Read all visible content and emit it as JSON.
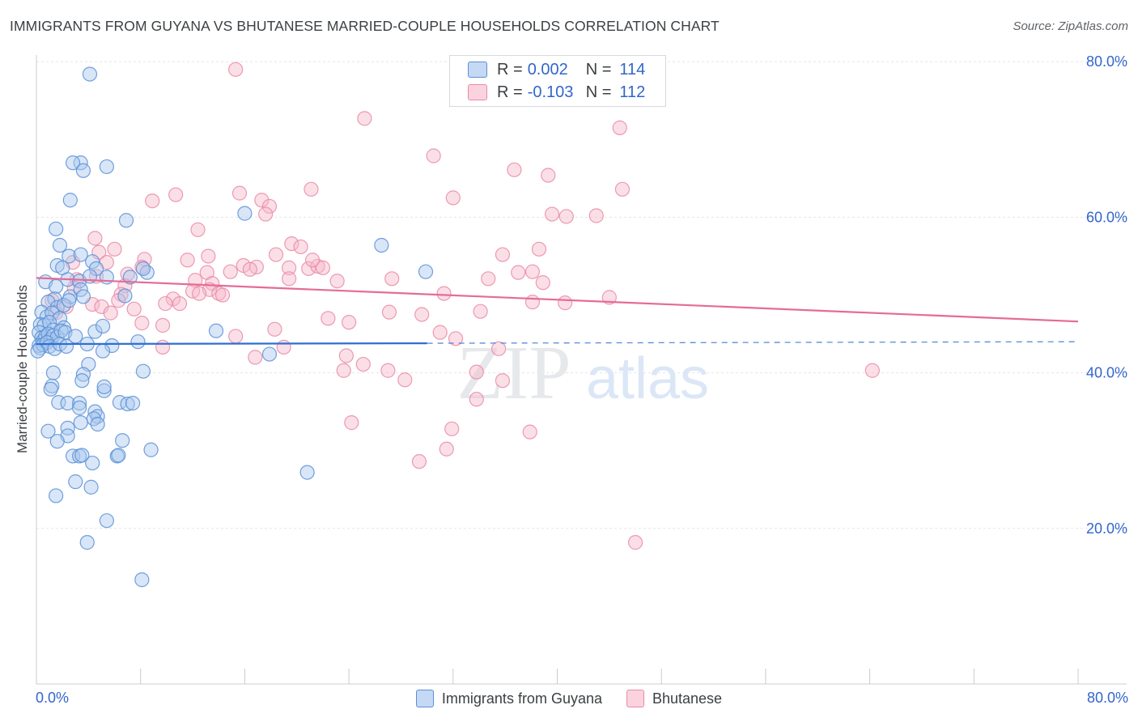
{
  "title": "IMMIGRANTS FROM GUYANA VS BHUTANESE MARRIED-COUPLE HOUSEHOLDS CORRELATION CHART",
  "source": "Source: ZipAtlas.com",
  "watermark_zip": "ZIP",
  "watermark_atlas": "atlas",
  "stats": {
    "r_label": "R =",
    "n_label": "N =",
    "rows": [
      {
        "r": "0.002",
        "n": "114"
      },
      {
        "r": "-0.103",
        "n": "112"
      }
    ]
  },
  "legend": {
    "items": [
      {
        "label": "Immigrants from Guyana"
      },
      {
        "label": "Bhutanese"
      }
    ]
  },
  "axis": {
    "x_min_label": "0.0%",
    "x_max_label": "80.0%"
  },
  "colors": {
    "blue_fill": "#a9c8ee",
    "blue_stroke": "#5b8fd6",
    "blue_line": "#2e6fd2",
    "pink_fill": "#f6b8ca",
    "pink_stroke": "#e98aa8",
    "pink_line": "#e56b98",
    "value_text": "#3366cc"
  },
  "chart_data": {
    "type": "scatter",
    "title": "IMMIGRANTS FROM GUYANA VS BHUTANESE MARRIED-COUPLE HOUSEHOLDS CORRELATION CHART",
    "xlabel": "",
    "ylabel": "Married-couple Households",
    "xlim": [
      0,
      80
    ],
    "ylim": [
      0,
      82
    ],
    "y_ticks": [
      {
        "value": 20,
        "label": "20.0%"
      },
      {
        "value": 40,
        "label": "40.0%"
      },
      {
        "value": 60,
        "label": "60.0%"
      },
      {
        "value": 80,
        "label": "80.0%"
      }
    ],
    "x_ticks": [
      0,
      8,
      16,
      24,
      32,
      40,
      48,
      56,
      64,
      72,
      80
    ],
    "grid": true,
    "series": [
      {
        "name": "Immigrants from Guyana",
        "R": 0.002,
        "N": 114,
        "trend": {
          "x0": 0,
          "y0": 43.7,
          "x1": 30,
          "y1": 43.8,
          "dash_to_x": 80,
          "dash_y": 44.0
        },
        "points": [
          [
            4.1,
            78.4
          ],
          [
            3.4,
            67
          ],
          [
            2.8,
            67
          ],
          [
            3.6,
            66
          ],
          [
            5.4,
            66.5
          ],
          [
            2.6,
            62.2
          ],
          [
            6.9,
            59.6
          ],
          [
            1.5,
            58.5
          ],
          [
            16.0,
            60.5
          ],
          [
            26.5,
            56.4
          ],
          [
            29.9,
            53
          ],
          [
            1.8,
            56.4
          ],
          [
            2.5,
            55
          ],
          [
            3.4,
            55.2
          ],
          [
            4.3,
            54.3
          ],
          [
            4.6,
            53.4
          ],
          [
            1.6,
            53.8
          ],
          [
            2.0,
            53.5
          ],
          [
            2.4,
            52
          ],
          [
            3.3,
            51.8
          ],
          [
            4.1,
            52.4
          ],
          [
            5.4,
            52.3
          ],
          [
            8.5,
            52.9
          ],
          [
            8.2,
            53.4
          ],
          [
            7.2,
            52.3
          ],
          [
            0.7,
            51.7
          ],
          [
            1.5,
            51.1
          ],
          [
            2.6,
            49.8
          ],
          [
            1.4,
            49.5
          ],
          [
            3.4,
            50.7
          ],
          [
            3.6,
            49.8
          ],
          [
            6.8,
            49.9
          ],
          [
            0.9,
            49.1
          ],
          [
            1.6,
            48.4
          ],
          [
            2.1,
            48.7
          ],
          [
            2.5,
            49.3
          ],
          [
            0.4,
            47.8
          ],
          [
            0.8,
            47.2
          ],
          [
            1.2,
            47.7
          ],
          [
            1.8,
            47
          ],
          [
            0.3,
            46.2
          ],
          [
            0.6,
            46.1
          ],
          [
            1.0,
            46.5
          ],
          [
            1.3,
            45.5
          ],
          [
            2.1,
            45.8
          ],
          [
            0.2,
            45.2
          ],
          [
            0.4,
            44.5
          ],
          [
            0.5,
            44.1
          ],
          [
            0.7,
            44.7
          ],
          [
            0.9,
            45
          ],
          [
            1.1,
            44.3
          ],
          [
            1.3,
            44.8
          ],
          [
            1.6,
            44.6
          ],
          [
            1.9,
            45.4
          ],
          [
            2.2,
            45.2
          ],
          [
            3.0,
            44.7
          ],
          [
            4.5,
            45.3
          ],
          [
            5.1,
            46
          ],
          [
            13.8,
            45.4
          ],
          [
            0.2,
            43.5
          ],
          [
            0.3,
            43.2
          ],
          [
            0.5,
            43.6
          ],
          [
            0.8,
            43.9
          ],
          [
            1.0,
            43.4
          ],
          [
            1.4,
            43.1
          ],
          [
            1.8,
            43.7
          ],
          [
            2.3,
            43.4
          ],
          [
            3.9,
            43.7
          ],
          [
            5.8,
            43.5
          ],
          [
            7.8,
            44
          ],
          [
            17.9,
            42.4
          ],
          [
            0.1,
            42.8
          ],
          [
            5.1,
            42.8
          ],
          [
            4.0,
            41.1
          ],
          [
            8.2,
            40.2
          ],
          [
            1.3,
            40
          ],
          [
            3.6,
            39.8
          ],
          [
            3.5,
            39
          ],
          [
            1.2,
            38.3
          ],
          [
            1.1,
            37.9
          ],
          [
            5.2,
            37.7
          ],
          [
            5.2,
            38.2
          ],
          [
            1.7,
            36.2
          ],
          [
            2.4,
            36.1
          ],
          [
            3.3,
            36.1
          ],
          [
            6.4,
            36.2
          ],
          [
            7.0,
            36
          ],
          [
            7.4,
            36.1
          ],
          [
            3.3,
            35.5
          ],
          [
            4.5,
            35
          ],
          [
            4.7,
            34.4
          ],
          [
            4.4,
            34.1
          ],
          [
            3.4,
            33.6
          ],
          [
            4.7,
            33.4
          ],
          [
            0.9,
            32.5
          ],
          [
            2.4,
            32.9
          ],
          [
            2.4,
            31.9
          ],
          [
            1.6,
            31.2
          ],
          [
            6.6,
            31.3
          ],
          [
            8.8,
            30.1
          ],
          [
            2.8,
            29.3
          ],
          [
            3.3,
            29.3
          ],
          [
            3.5,
            29.4
          ],
          [
            6.2,
            29.3
          ],
          [
            6.3,
            29.4
          ],
          [
            4.3,
            28.4
          ],
          [
            20.8,
            27.2
          ],
          [
            3.0,
            26
          ],
          [
            4.2,
            25.3
          ],
          [
            1.5,
            24.2
          ],
          [
            5.4,
            21
          ],
          [
            3.9,
            18.2
          ],
          [
            8.1,
            13.4
          ]
        ]
      },
      {
        "name": "Bhutanese",
        "R": -0.103,
        "N": 112,
        "trend": {
          "x0": 0,
          "y0": 52.2,
          "x1": 80,
          "y1": 46.6
        },
        "points": [
          [
            15.3,
            79
          ],
          [
            25.2,
            72.7
          ],
          [
            44.8,
            71.5
          ],
          [
            30.5,
            67.9
          ],
          [
            36.7,
            66.1
          ],
          [
            39.3,
            65.4
          ],
          [
            21.1,
            63.6
          ],
          [
            45.0,
            63.6
          ],
          [
            10.7,
            62.9
          ],
          [
            15.6,
            63.1
          ],
          [
            17.3,
            62.2
          ],
          [
            32.0,
            62.5
          ],
          [
            8.9,
            62.1
          ],
          [
            17.9,
            61.4
          ],
          [
            17.6,
            60.4
          ],
          [
            39.6,
            60.4
          ],
          [
            40.7,
            60.1
          ],
          [
            43.0,
            60.2
          ],
          [
            12.4,
            58.4
          ],
          [
            4.5,
            57.3
          ],
          [
            6.0,
            55.9
          ],
          [
            4.8,
            55.5
          ],
          [
            19.6,
            56.6
          ],
          [
            18.4,
            55.2
          ],
          [
            8.3,
            54.6
          ],
          [
            11.6,
            54.5
          ],
          [
            13.2,
            55
          ],
          [
            35.8,
            55.2
          ],
          [
            38.6,
            55.9
          ],
          [
            20.3,
            56.2
          ],
          [
            5.4,
            54.2
          ],
          [
            2.8,
            54.2
          ],
          [
            15.9,
            53.8
          ],
          [
            16.9,
            53.6
          ],
          [
            16.4,
            53.3
          ],
          [
            19.4,
            53.5
          ],
          [
            20.9,
            53.4
          ],
          [
            21.6,
            53.7
          ],
          [
            21.2,
            54.5
          ],
          [
            22.0,
            53.5
          ],
          [
            8.1,
            53.6
          ],
          [
            13.1,
            52.9
          ],
          [
            14.9,
            53
          ],
          [
            37.0,
            52.9
          ],
          [
            38.1,
            53
          ],
          [
            7.0,
            52.7
          ],
          [
            4.6,
            52.4
          ],
          [
            3.1,
            52
          ],
          [
            12.2,
            51.9
          ],
          [
            13.5,
            51.5
          ],
          [
            19.4,
            52.1
          ],
          [
            23.1,
            51.8
          ],
          [
            27.3,
            52.1
          ],
          [
            34.7,
            52.1
          ],
          [
            38.9,
            51.6
          ],
          [
            6.8,
            51.2
          ],
          [
            2.9,
            50.9
          ],
          [
            13.3,
            50.7
          ],
          [
            12.0,
            50.5
          ],
          [
            12.5,
            50.2
          ],
          [
            14.0,
            50.2
          ],
          [
            14.3,
            50
          ],
          [
            6.5,
            50.1
          ],
          [
            31.3,
            50.2
          ],
          [
            10.5,
            49.5
          ],
          [
            1.2,
            49.3
          ],
          [
            6.3,
            49.3
          ],
          [
            11.0,
            48.9
          ],
          [
            9.9,
            48.9
          ],
          [
            4.3,
            48.8
          ],
          [
            5.0,
            48.5
          ],
          [
            38.1,
            49.1
          ],
          [
            44.0,
            49.7
          ],
          [
            2.3,
            48.5
          ],
          [
            7.5,
            48.2
          ],
          [
            1.5,
            47.7
          ],
          [
            27.1,
            47.8
          ],
          [
            34.1,
            47.9
          ],
          [
            29.6,
            47.5
          ],
          [
            22.4,
            47
          ],
          [
            24.0,
            46.5
          ],
          [
            8.1,
            46.4
          ],
          [
            5.7,
            47.7
          ],
          [
            9.7,
            46.1
          ],
          [
            18.3,
            45.6
          ],
          [
            31.0,
            45.2
          ],
          [
            15.3,
            44.7
          ],
          [
            32.2,
            44.4
          ],
          [
            9.7,
            43.3
          ],
          [
            19.0,
            43.3
          ],
          [
            16.8,
            42
          ],
          [
            23.8,
            42.2
          ],
          [
            25.1,
            41.1
          ],
          [
            23.6,
            40.3
          ],
          [
            27.0,
            40.3
          ],
          [
            33.8,
            40.1
          ],
          [
            35.5,
            43.1
          ],
          [
            28.3,
            39.1
          ],
          [
            35.8,
            39
          ],
          [
            64.2,
            40.3
          ],
          [
            33.8,
            36.6
          ],
          [
            24.2,
            33.6
          ],
          [
            31.9,
            32.8
          ],
          [
            37.9,
            32.4
          ],
          [
            31.5,
            30.2
          ],
          [
            29.4,
            28.6
          ],
          [
            46.0,
            18.2
          ],
          [
            40.6,
            49
          ]
        ]
      }
    ]
  }
}
